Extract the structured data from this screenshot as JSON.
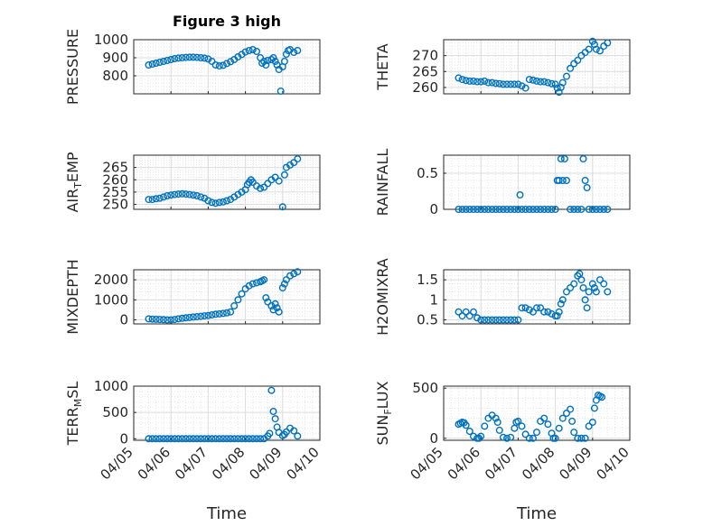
{
  "figure": {
    "title": "Figure 3 high",
    "xlabel": "Time",
    "x_ticks": [
      "04/05",
      "04/06",
      "04/07",
      "04/08",
      "04/09",
      "04/10"
    ],
    "marker_color": "#0072BD",
    "grid_color": "#dcdcdc"
  },
  "chart_data": [
    {
      "type": "scatter",
      "ylabel": "PRESSURE",
      "ylim": [
        700,
        1000
      ],
      "yticks": [
        "800",
        "900",
        "1000"
      ],
      "ytick_values": [
        800,
        900,
        1000
      ],
      "x": [
        5.4,
        5.5,
        5.6,
        5.7,
        5.8,
        5.9,
        6.0,
        6.1,
        6.2,
        6.3,
        6.4,
        6.5,
        6.6,
        6.7,
        6.8,
        6.9,
        7.0,
        7.1,
        7.2,
        7.3,
        7.4,
        7.5,
        7.6,
        7.7,
        7.8,
        7.9,
        8.0,
        8.1,
        8.2,
        8.3,
        8.4,
        8.45,
        8.5,
        8.55,
        8.6,
        8.7,
        8.75,
        8.8,
        8.85,
        8.9,
        8.95,
        9.0,
        9.05,
        9.1,
        9.15,
        9.2,
        9.3,
        9.4
      ],
      "y": [
        860,
        865,
        870,
        875,
        880,
        885,
        890,
        895,
        898,
        900,
        902,
        903,
        903,
        902,
        900,
        898,
        893,
        880,
        860,
        855,
        858,
        868,
        878,
        890,
        905,
        918,
        932,
        940,
        945,
        935,
        900,
        870,
        880,
        860,
        885,
        890,
        900,
        880,
        860,
        835,
        715,
        850,
        880,
        920,
        940,
        945,
        930,
        940
      ]
    },
    {
      "type": "scatter",
      "ylabel": "THETA",
      "ylim": [
        258,
        275
      ],
      "yticks": [
        "260",
        "265",
        "270"
      ],
      "ytick_values": [
        260,
        265,
        270
      ],
      "x": [
        5.4,
        5.5,
        5.6,
        5.7,
        5.8,
        5.9,
        6.0,
        6.1,
        6.2,
        6.3,
        6.4,
        6.5,
        6.6,
        6.7,
        6.8,
        6.9,
        7.0,
        7.1,
        7.2,
        7.3,
        7.4,
        7.5,
        7.6,
        7.7,
        7.8,
        7.9,
        8.0,
        8.05,
        8.1,
        8.15,
        8.2,
        8.3,
        8.4,
        8.5,
        8.6,
        8.7,
        8.8,
        8.9,
        9.0,
        9.05,
        9.1,
        9.2,
        9.3,
        9.4
      ],
      "y": [
        263,
        262.5,
        262.2,
        262,
        262,
        261.8,
        261.8,
        262,
        261.5,
        261.5,
        261.3,
        261.2,
        261,
        261,
        261,
        261,
        261,
        260.5,
        259.8,
        262.5,
        262.3,
        262,
        261.8,
        261.8,
        261.5,
        261.2,
        261,
        259.8,
        258.5,
        260,
        261.5,
        263.5,
        266,
        267.5,
        268.5,
        270,
        271,
        272,
        274.5,
        273.5,
        272,
        271.5,
        273,
        274
      ]
    },
    {
      "type": "scatter",
      "ylabel": "AIR_TEMP",
      "ylabel_main": "AIR",
      "ylabel_sub": "T",
      "ylabel_tail": "EMP",
      "ylim": [
        248,
        270
      ],
      "yticks": [
        "250",
        "255",
        "260",
        "265"
      ],
      "ytick_values": [
        250,
        255,
        260,
        265
      ],
      "x": [
        5.4,
        5.5,
        5.6,
        5.7,
        5.8,
        5.9,
        6.0,
        6.1,
        6.2,
        6.3,
        6.4,
        6.5,
        6.6,
        6.7,
        6.8,
        6.9,
        7.0,
        7.1,
        7.2,
        7.3,
        7.4,
        7.5,
        7.6,
        7.7,
        7.8,
        7.9,
        8.0,
        8.05,
        8.1,
        8.15,
        8.2,
        8.3,
        8.4,
        8.5,
        8.6,
        8.7,
        8.8,
        8.9,
        9.0,
        9.05,
        9.1,
        9.2,
        9.3,
        9.4
      ],
      "y": [
        252,
        252,
        252.3,
        252.5,
        253,
        253.5,
        253.8,
        254,
        254.2,
        254.3,
        254.2,
        254,
        253.8,
        253.5,
        253,
        252.5,
        251.5,
        250.8,
        250.5,
        250.8,
        251,
        251.5,
        252,
        253,
        254,
        255,
        256,
        258,
        259,
        260,
        259,
        257.5,
        256.5,
        257,
        258.5,
        260,
        261,
        259.5,
        249,
        262,
        265,
        266,
        267,
        268.5
      ]
    },
    {
      "type": "scatter",
      "ylabel": "RAINFALL",
      "ylim": [
        0,
        0.75
      ],
      "yticks": [
        "0",
        "0.5"
      ],
      "ytick_values": [
        0,
        0.5
      ],
      "x": [
        5.4,
        5.5,
        5.6,
        5.7,
        5.8,
        5.9,
        6.0,
        6.1,
        6.2,
        6.3,
        6.4,
        6.5,
        6.6,
        6.7,
        6.8,
        6.9,
        7.0,
        7.05,
        7.1,
        7.2,
        7.3,
        7.4,
        7.5,
        7.6,
        7.7,
        7.8,
        7.9,
        8.0,
        8.05,
        8.1,
        8.15,
        8.2,
        8.25,
        8.3,
        8.4,
        8.5,
        8.6,
        8.7,
        8.75,
        8.8,
        8.85,
        8.9,
        9.0,
        9.1,
        9.2,
        9.3,
        9.4
      ],
      "y": [
        0,
        0,
        0,
        0,
        0,
        0,
        0,
        0,
        0,
        0,
        0,
        0,
        0,
        0,
        0,
        0,
        0,
        0.2,
        0,
        0,
        0,
        0,
        0,
        0,
        0,
        0,
        0,
        0,
        0.4,
        0.4,
        0.7,
        0.4,
        0.7,
        0.4,
        0,
        0,
        0,
        0,
        0.7,
        0.4,
        0.3,
        0,
        0,
        0,
        0,
        0,
        0
      ]
    },
    {
      "type": "scatter",
      "ylabel": "MIXDEPTH",
      "ylim": [
        -200,
        2500
      ],
      "yticks": [
        "0",
        "1000",
        "2000"
      ],
      "ytick_values": [
        0,
        1000,
        2000
      ],
      "x": [
        5.4,
        5.5,
        5.6,
        5.7,
        5.8,
        5.9,
        6.0,
        6.1,
        6.2,
        6.3,
        6.4,
        6.5,
        6.6,
        6.7,
        6.8,
        6.9,
        7.0,
        7.1,
        7.2,
        7.3,
        7.4,
        7.5,
        7.6,
        7.7,
        7.8,
        7.9,
        8.0,
        8.1,
        8.2,
        8.3,
        8.4,
        8.45,
        8.5,
        8.55,
        8.6,
        8.7,
        8.75,
        8.8,
        8.85,
        8.9,
        9.0,
        9.05,
        9.1,
        9.2,
        9.3,
        9.4
      ],
      "y": [
        50,
        40,
        30,
        20,
        10,
        0,
        0,
        20,
        50,
        80,
        100,
        120,
        140,
        160,
        180,
        200,
        220,
        250,
        280,
        300,
        320,
        350,
        400,
        700,
        1000,
        1300,
        1550,
        1700,
        1800,
        1850,
        1900,
        1950,
        2000,
        1100,
        900,
        700,
        500,
        800,
        600,
        400,
        1600,
        1800,
        2000,
        2200,
        2300,
        2400
      ]
    },
    {
      "type": "scatter",
      "ylabel": "H2OMIXRA",
      "ylim": [
        0.4,
        1.75
      ],
      "yticks": [
        "0.5",
        "1",
        "1.5"
      ],
      "ytick_values": [
        0.5,
        1,
        1.5
      ],
      "x": [
        5.4,
        5.5,
        5.6,
        5.7,
        5.8,
        5.9,
        6.0,
        6.1,
        6.2,
        6.3,
        6.4,
        6.5,
        6.6,
        6.7,
        6.8,
        6.9,
        7.0,
        7.1,
        7.2,
        7.3,
        7.4,
        7.5,
        7.6,
        7.7,
        7.8,
        7.9,
        8.0,
        8.05,
        8.1,
        8.15,
        8.2,
        8.3,
        8.4,
        8.5,
        8.6,
        8.65,
        8.7,
        8.75,
        8.8,
        8.85,
        8.9,
        9.0,
        9.05,
        9.1,
        9.2,
        9.3,
        9.4
      ],
      "y": [
        0.7,
        0.6,
        0.7,
        0.6,
        0.7,
        0.55,
        0.5,
        0.5,
        0.5,
        0.5,
        0.5,
        0.5,
        0.5,
        0.5,
        0.5,
        0.5,
        0.5,
        0.8,
        0.8,
        0.75,
        0.7,
        0.8,
        0.8,
        0.7,
        0.7,
        0.65,
        0.6,
        0.6,
        0.7,
        0.9,
        1.0,
        1.2,
        1.3,
        1.4,
        1.6,
        1.65,
        1.5,
        1.3,
        1.0,
        0.8,
        1.2,
        1.4,
        1.3,
        1.2,
        1.5,
        1.4,
        1.2
      ]
    },
    {
      "type": "scatter",
      "ylabel": "TERR_MSL",
      "ylabel_main": "TERR",
      "ylabel_sub": "M",
      "ylabel_tail": "SL",
      "ylim": [
        -30,
        1000
      ],
      "yticks": [
        "0",
        "500",
        "1000"
      ],
      "ytick_values": [
        0,
        500,
        1000
      ],
      "x": [
        5.4,
        5.5,
        5.6,
        5.7,
        5.8,
        5.9,
        6.0,
        6.1,
        6.2,
        6.3,
        6.4,
        6.5,
        6.6,
        6.7,
        6.8,
        6.9,
        7.0,
        7.1,
        7.2,
        7.3,
        7.4,
        7.5,
        7.6,
        7.7,
        7.8,
        7.9,
        8.0,
        8.1,
        8.2,
        8.3,
        8.4,
        8.5,
        8.6,
        8.65,
        8.7,
        8.75,
        8.8,
        8.85,
        8.9,
        9.0,
        9.05,
        9.1,
        9.2,
        9.3,
        9.4
      ],
      "y": [
        0,
        0,
        0,
        0,
        0,
        0,
        0,
        0,
        0,
        0,
        0,
        0,
        0,
        0,
        0,
        0,
        0,
        0,
        0,
        0,
        0,
        0,
        0,
        0,
        0,
        0,
        0,
        0,
        0,
        0,
        0,
        0,
        50,
        100,
        920,
        520,
        380,
        220,
        120,
        60,
        80,
        130,
        200,
        150,
        50
      ]
    },
    {
      "type": "scatter",
      "ylabel": "SUN_FLUX",
      "ylabel_main": "SUN",
      "ylabel_sub": "F",
      "ylabel_tail": "LUX",
      "ylim": [
        -20,
        520
      ],
      "yticks": [
        "0",
        "500"
      ],
      "ytick_values": [
        0,
        500
      ],
      "x": [
        5.4,
        5.45,
        5.5,
        5.55,
        5.6,
        5.7,
        5.8,
        5.9,
        5.95,
        6.0,
        6.1,
        6.2,
        6.3,
        6.4,
        6.45,
        6.5,
        6.6,
        6.7,
        6.8,
        6.9,
        6.95,
        7.0,
        7.1,
        7.2,
        7.3,
        7.4,
        7.5,
        7.6,
        7.7,
        7.8,
        7.9,
        7.95,
        8.0,
        8.1,
        8.2,
        8.3,
        8.4,
        8.45,
        8.5,
        8.6,
        8.7,
        8.8,
        8.9,
        9.0,
        9.05,
        9.1,
        9.15,
        9.2,
        9.25
      ],
      "y": [
        140,
        150,
        160,
        155,
        130,
        70,
        20,
        0,
        0,
        20,
        120,
        200,
        230,
        200,
        160,
        80,
        10,
        0,
        10,
        100,
        160,
        170,
        120,
        40,
        0,
        0,
        60,
        170,
        200,
        140,
        50,
        0,
        0,
        100,
        200,
        250,
        290,
        170,
        60,
        0,
        0,
        0,
        120,
        160,
        300,
        380,
        430,
        420,
        410
      ]
    }
  ]
}
